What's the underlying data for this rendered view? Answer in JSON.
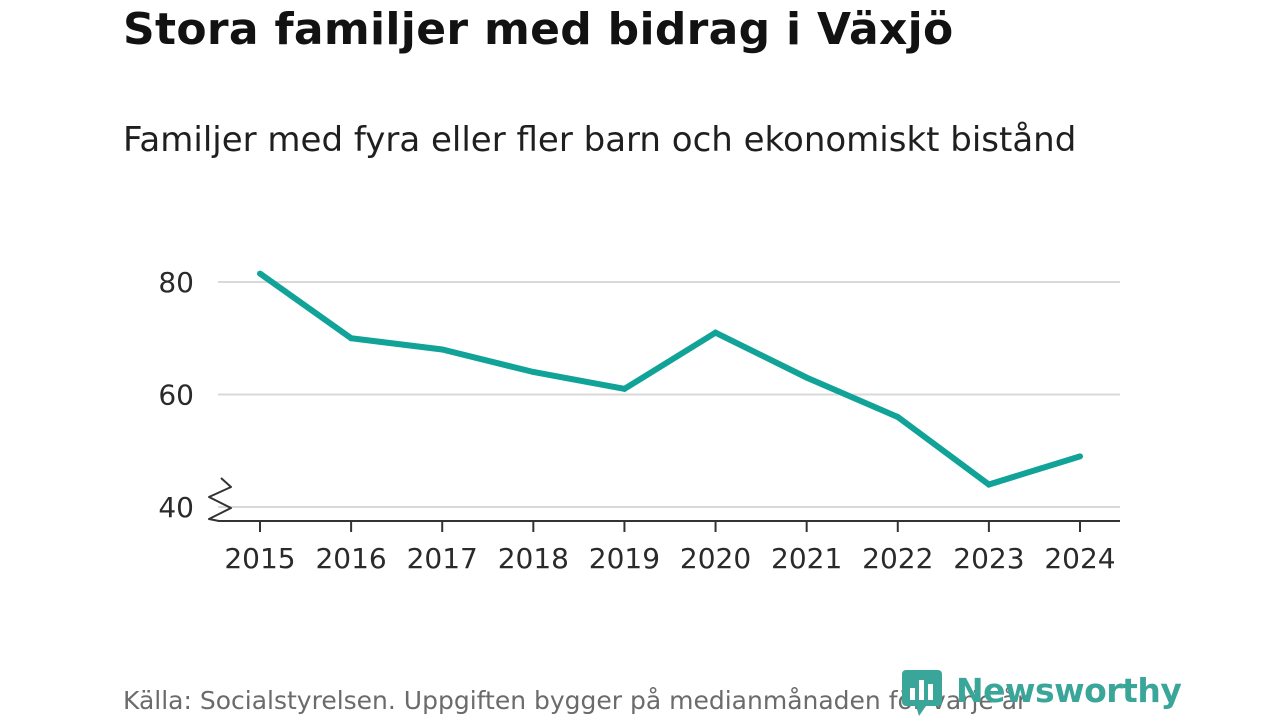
{
  "header": {
    "title": "Stora familjer med bidrag i Växjö",
    "subtitle": "Familjer med fyra eller fler barn och ekonomiskt bistånd"
  },
  "footer": {
    "source": "Källa: Socialstyrelsen. Uppgiften bygger på medianmånaden för varje år",
    "brand": "Newsworthy",
    "brand_icon": "bar-chart-speech-bubble-icon"
  },
  "colors": {
    "line": "#11a398",
    "grid": "#d9d9d9",
    "axis": "#333333",
    "brand": "#3aa69a"
  },
  "chart_data": {
    "type": "line",
    "title": "Stora familjer med bidrag i Växjö",
    "subtitle": "Familjer med fyra eller fler barn och ekonomiskt bistånd",
    "xlabel": "",
    "ylabel": "",
    "x": [
      "2015",
      "2016",
      "2017",
      "2018",
      "2019",
      "2020",
      "2021",
      "2022",
      "2023",
      "2024"
    ],
    "series": [
      {
        "values": [
          81.5,
          70,
          68,
          64,
          61,
          71,
          63,
          56,
          44,
          49
        ]
      }
    ],
    "ylim": [
      40,
      80
    ],
    "yticks": [
      40,
      60,
      80
    ],
    "y_axis_break": true,
    "grid": "horizontal",
    "legend": "none"
  }
}
